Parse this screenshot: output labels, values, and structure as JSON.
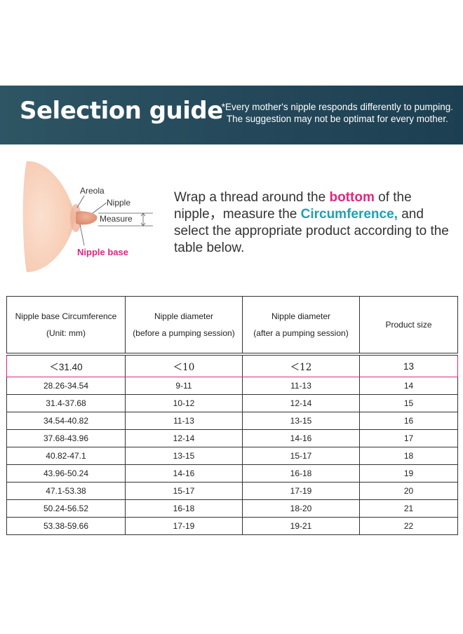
{
  "banner": {
    "title": "Selection guide",
    "note_line1": "*Every mother's nipple responds differently to pumping.",
    "note_line2": "The suggestion may not be optimat for every mother."
  },
  "diagram": {
    "label_areola": "Areola",
    "label_nipple": "Nipple",
    "label_measure": "Measure",
    "label_nipple_base": "Nipple base",
    "colors": {
      "skin": "#f7cdb5",
      "nipple": "#e2997d",
      "accent": "#e0267e"
    }
  },
  "instructions": {
    "part1": "Wrap a thread around the ",
    "highlight1": "bottom",
    "part2": " of the nipple，measure the ",
    "highlight2": "Circumference,",
    "part3": " and select the appropriate product according to the table below."
  },
  "table": {
    "headers": [
      {
        "line1": "Nipple base Circumference",
        "line2": "(Unit: mm)"
      },
      {
        "line1": "Nipple diameter",
        "line2": "(before a pumping session)"
      },
      {
        "line1": "Nipple diameter",
        "line2": "(after a pumping session)"
      },
      {
        "line1": "Product size",
        "line2": ""
      }
    ],
    "highlight_row": [
      "＜31.40",
      "＜10",
      "＜12",
      "13"
    ],
    "rows": [
      [
        "28.26-34.54",
        "9-11",
        "11-13",
        "14"
      ],
      [
        "31.4-37.68",
        "10-12",
        "12-14",
        "15"
      ],
      [
        "34.54-40.82",
        "11-13",
        "13-15",
        "16"
      ],
      [
        "37.68-43.96",
        "12-14",
        "14-16",
        "17"
      ],
      [
        "40.82-47.1",
        "13-15",
        "15-17",
        "18"
      ],
      [
        "43.96-50.24",
        "14-16",
        "16-18",
        "19"
      ],
      [
        "47.1-53.38",
        "15-17",
        "17-19",
        "20"
      ],
      [
        "50.24-56.52",
        "16-18",
        "18-20",
        "21"
      ],
      [
        "53.38-59.66",
        "17-19",
        "19-21",
        "22"
      ]
    ]
  }
}
